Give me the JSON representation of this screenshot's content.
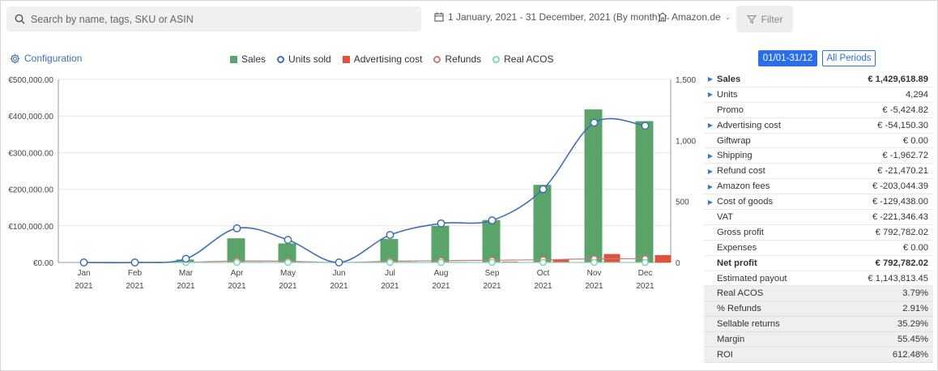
{
  "search": {
    "placeholder": "Search by name, tags, SKU or ASIN"
  },
  "date_range": {
    "label": "1 January, 2021 - 31 December, 2021 (By month)"
  },
  "marketplace": {
    "label": "Amazon.de"
  },
  "filter": {
    "label": "Filter"
  },
  "configuration": {
    "label": "Configuration"
  },
  "legend": [
    {
      "label": "Sales",
      "color": "#5aa469",
      "shape": "square"
    },
    {
      "label": "Units sold",
      "color": "#3f6fb6",
      "shape": "circle"
    },
    {
      "label": "Advertising cost",
      "color": "#e0523b",
      "shape": "square"
    },
    {
      "label": "Refunds",
      "color": "#c97a7a",
      "shape": "circle"
    },
    {
      "label": "Real ACOS",
      "color": "#7fd6b8",
      "shape": "circle"
    }
  ],
  "periods": {
    "active": "01/01-31/12",
    "all": "All Periods"
  },
  "chart_data": {
    "type": "bar",
    "title": "",
    "categories": [
      "Jan",
      "Feb",
      "Mar",
      "Apr",
      "May",
      "Jun",
      "Jul",
      "Aug",
      "Sep",
      "Oct",
      "Nov",
      "Dec"
    ],
    "category_sublabels": [
      "2021",
      "2021",
      "2021",
      "2021",
      "2021",
      "2021",
      "2021",
      "2021",
      "2021",
      "2021",
      "2021",
      "2021"
    ],
    "y_left": {
      "ticks": [
        "€0.00",
        "€100,000.00",
        "€200,000.00",
        "€300,000.00",
        "€400,000.00",
        "€500,000.00"
      ],
      "range": [
        0,
        500000
      ]
    },
    "y_right": {
      "ticks": [
        "0",
        "500",
        "1,000",
        "1,500"
      ],
      "range": [
        0,
        1500
      ]
    },
    "series": [
      {
        "name": "Sales",
        "type": "bar",
        "axis": "left",
        "color": "#5aa469",
        "values": [
          0,
          0,
          8000,
          66000,
          52000,
          0,
          64000,
          100000,
          116000,
          212000,
          418000,
          386000
        ]
      },
      {
        "name": "Advertising cost",
        "type": "bar",
        "axis": "left",
        "color": "#e0523b",
        "values": [
          0,
          0,
          0,
          1500,
          1500,
          0,
          1500,
          1500,
          2500,
          8000,
          23000,
          20000
        ]
      },
      {
        "name": "Units sold",
        "type": "line",
        "axis": "right",
        "color": "#3f6fb6",
        "values": [
          0,
          0,
          30,
          280,
          185,
          0,
          225,
          320,
          345,
          600,
          1145,
          1120
        ]
      },
      {
        "name": "Refunds",
        "type": "line",
        "axis": "right",
        "color": "#c97a7a",
        "values": [
          0,
          0,
          2,
          12,
          10,
          0,
          10,
          15,
          18,
          22,
          30,
          30
        ]
      },
      {
        "name": "Real ACOS",
        "type": "line",
        "axis": "right",
        "color": "#7fd6b8",
        "values": [
          0,
          0,
          0,
          0,
          0,
          0,
          0,
          0,
          0,
          0,
          0,
          0
        ]
      }
    ]
  },
  "summary": [
    {
      "label": "Sales",
      "value": "€ 1,429,618.89",
      "expandable": true,
      "bold": true,
      "grey": false
    },
    {
      "label": "Units",
      "value": "4,294",
      "expandable": true,
      "bold": false,
      "grey": false
    },
    {
      "label": "Promo",
      "value": "€ -5,424.82",
      "expandable": false,
      "bold": false,
      "grey": false
    },
    {
      "label": "Advertising cost",
      "value": "€ -54,150.30",
      "expandable": true,
      "bold": false,
      "grey": false
    },
    {
      "label": "Giftwrap",
      "value": "€ 0.00",
      "expandable": false,
      "bold": false,
      "grey": false
    },
    {
      "label": "Shipping",
      "value": "€ -1,962.72",
      "expandable": true,
      "bold": false,
      "grey": false
    },
    {
      "label": "Refund cost",
      "value": "€ -21,470.21",
      "expandable": true,
      "bold": false,
      "grey": false
    },
    {
      "label": "Amazon fees",
      "value": "€ -203,044.39",
      "expandable": true,
      "bold": false,
      "grey": false
    },
    {
      "label": "Cost of goods",
      "value": "€ -129,438.00",
      "expandable": true,
      "bold": false,
      "grey": false
    },
    {
      "label": "VAT",
      "value": "€ -221,346.43",
      "expandable": false,
      "bold": false,
      "grey": false
    },
    {
      "label": "Gross profit",
      "value": "€ 792,782.02",
      "expandable": false,
      "bold": false,
      "grey": false
    },
    {
      "label": "Expenses",
      "value": "€ 0.00",
      "expandable": false,
      "bold": false,
      "grey": false
    },
    {
      "label": "Net profit",
      "value": "€ 792,782.02",
      "expandable": false,
      "bold": true,
      "grey": false
    },
    {
      "label": "Estimated payout",
      "value": "€ 1,143,813.45",
      "expandable": false,
      "bold": false,
      "grey": false
    },
    {
      "label": "Real ACOS",
      "value": "3.79%",
      "expandable": false,
      "bold": false,
      "grey": true
    },
    {
      "label": "% Refunds",
      "value": "2.91%",
      "expandable": false,
      "bold": false,
      "grey": true
    },
    {
      "label": "Sellable returns",
      "value": "35.29%",
      "expandable": false,
      "bold": false,
      "grey": true
    },
    {
      "label": "Margin",
      "value": "55.45%",
      "expandable": false,
      "bold": false,
      "grey": true
    },
    {
      "label": "ROI",
      "value": "612.48%",
      "expandable": false,
      "bold": false,
      "grey": true
    }
  ]
}
